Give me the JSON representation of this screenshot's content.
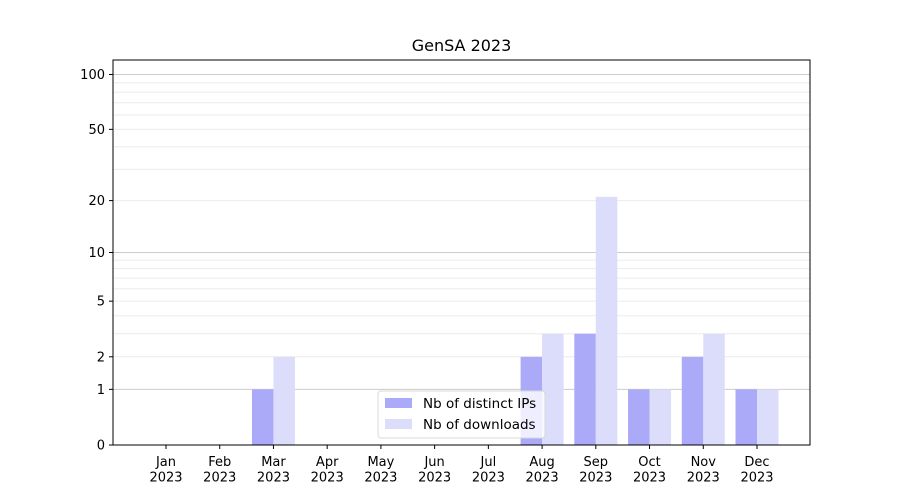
{
  "chart_data": {
    "type": "bar",
    "title": "GenSA 2023",
    "xlabel": "",
    "ylabel": "",
    "yscale": "symlog",
    "ylim": [
      0,
      120
    ],
    "yticks": [
      0,
      1,
      2,
      5,
      10,
      20,
      50,
      100
    ],
    "categories": [
      "Jan\n2023",
      "Feb\n2023",
      "Mar\n2023",
      "Apr\n2023",
      "May\n2023",
      "Jun\n2023",
      "Jul\n2023",
      "Aug\n2023",
      "Sep\n2023",
      "Oct\n2023",
      "Nov\n2023",
      "Dec\n2023"
    ],
    "series": [
      {
        "name": "Nb of distinct IPs",
        "color": "#aaaaf8",
        "values": [
          0,
          0,
          1,
          0,
          0,
          0,
          0,
          2,
          3,
          1,
          2,
          1
        ]
      },
      {
        "name": "Nb of downloads",
        "color": "#dcdcfb",
        "values": [
          0,
          0,
          2,
          0,
          0,
          0,
          0,
          3,
          21,
          1,
          3,
          1
        ]
      }
    ],
    "grid": true,
    "legend_position": "bottom-center"
  }
}
